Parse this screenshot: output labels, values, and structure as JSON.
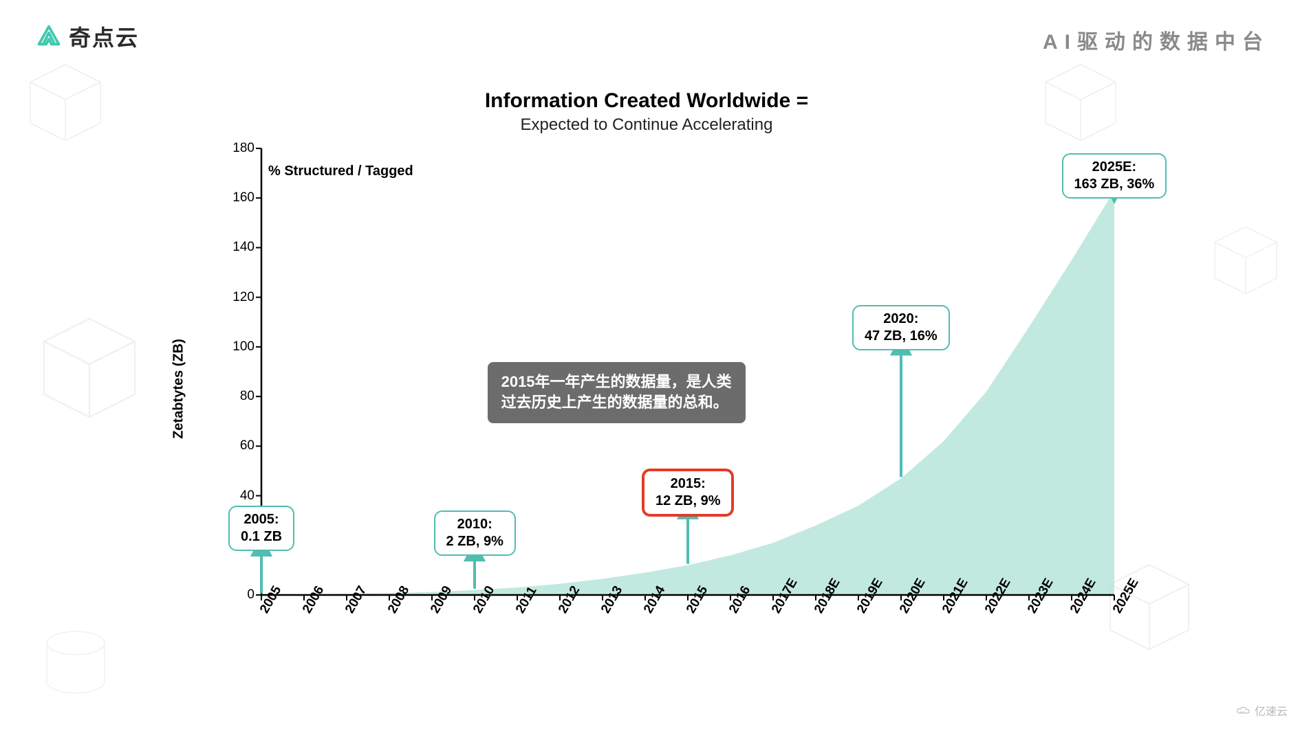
{
  "brand": {
    "name": "奇点云",
    "logo_colors": [
      "#3fc9b0",
      "#3fc9b0"
    ]
  },
  "tagline": "AI驱动的数据中台",
  "chart": {
    "type": "area",
    "title": "Information Created Worldwide =",
    "subtitle": "Expected to Continue Accelerating",
    "ylabel": "Zetabtytes (ZB)",
    "inner_note": "% Structured / Tagged",
    "background_color": "#ffffff",
    "axis_color": "#000000",
    "area_fill": "#aee1d4",
    "area_opacity": 0.75,
    "arrow_color": "#4fbdb1",
    "x_categories": [
      "2005",
      "2006",
      "2007",
      "2008",
      "2009",
      "2010",
      "2011",
      "2012",
      "2013",
      "2014",
      "2015",
      "2016",
      "2017E",
      "2018E",
      "2019E",
      "2020E",
      "2021E",
      "2022E",
      "2023E",
      "2024E",
      "2025E"
    ],
    "series_values": [
      0.1,
      0.3,
      0.5,
      0.8,
      1.2,
      2.0,
      3.0,
      4.5,
      6.5,
      9.0,
      12.0,
      16.0,
      21.0,
      28.0,
      36.0,
      47.0,
      62.0,
      82.0,
      108.0,
      135.0,
      163.0
    ],
    "ylim": [
      0,
      180
    ],
    "ytick_step": 20,
    "xtick_fontsize": 19,
    "ytick_fontsize": 19,
    "label_fontsize": 20,
    "title_fontsize": 30,
    "subtitle_fontsize": 24,
    "callouts": [
      {
        "x_index": 0,
        "line1": "2005:",
        "line2": "0.1 ZB",
        "box_top_y": 36,
        "border": "#4fbdb1",
        "border_w": 2
      },
      {
        "x_index": 5,
        "line1": "2010:",
        "line2": "2 ZB, 9%",
        "box_top_y": 34,
        "border": "#4fbdb1",
        "border_w": 2
      },
      {
        "x_index": 10,
        "line1": "2015:",
        "line2": "12 ZB, 9%",
        "box_top_y": 51,
        "border": "#e23c27",
        "border_w": 4
      },
      {
        "x_index": 15,
        "line1": "2020:",
        "line2": "47 ZB, 16%",
        "box_top_y": 117,
        "border": "#4fbdb1",
        "border_w": 2
      },
      {
        "x_index": 20,
        "line1": "2025E:",
        "line2": "163 ZB, 36%",
        "box_top_y": 178,
        "border": "#4fbdb1",
        "border_w": 2
      }
    ],
    "annotation_box": {
      "text_line1": "2015年一年产生的数据量，是人类",
      "text_line2": "过去历史上产生的数据量的总和。",
      "bg": "#6c6c6c",
      "color": "#ffffff",
      "fontsize": 22,
      "anchor_x_index": 5.3,
      "top_y": 94
    }
  },
  "watermark": "亿速云"
}
